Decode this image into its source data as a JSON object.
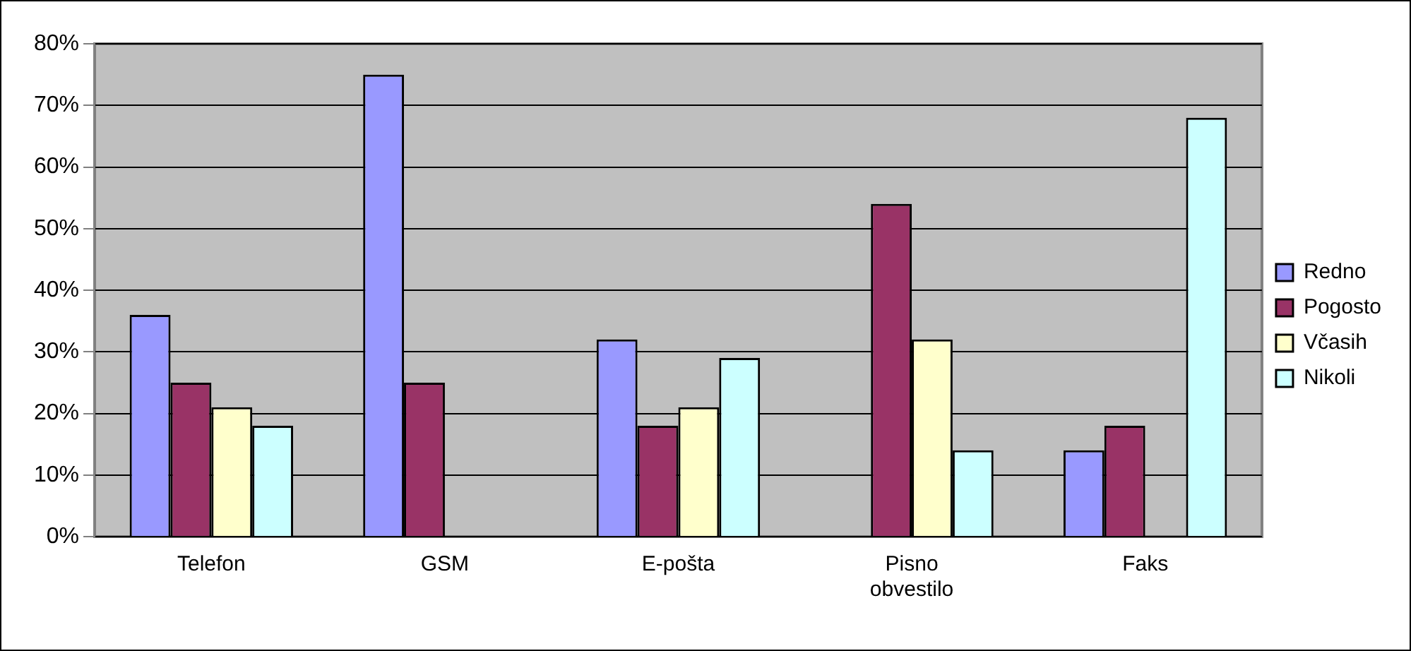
{
  "chart_data": {
    "type": "bar",
    "categories": [
      "Telefon",
      "GSM",
      "E-pošta",
      "Pisno obvestilo",
      "Faks"
    ],
    "series": [
      {
        "name": "Redno",
        "color": "#9999ff",
        "values": [
          36,
          75,
          32,
          0,
          14
        ]
      },
      {
        "name": "Pogosto",
        "color": "#993366",
        "values": [
          25,
          25,
          18,
          54,
          18
        ]
      },
      {
        "name": "Včasih",
        "color": "#ffffcc",
        "values": [
          21,
          0,
          21,
          32,
          0
        ]
      },
      {
        "name": "Nikoli",
        "color": "#ccffff",
        "values": [
          18,
          0,
          29,
          14,
          68
        ]
      }
    ],
    "ylim": [
      0,
      80
    ],
    "yticks": [
      {
        "value": 0,
        "label": "0%"
      },
      {
        "value": 10,
        "label": "10%"
      },
      {
        "value": 20,
        "label": "20%"
      },
      {
        "value": 30,
        "label": "30%"
      },
      {
        "value": 40,
        "label": "40%"
      },
      {
        "value": 50,
        "label": "50%"
      },
      {
        "value": 60,
        "label": "60%"
      },
      {
        "value": 70,
        "label": "70%"
      },
      {
        "value": 80,
        "label": "80%"
      }
    ],
    "grid": "y",
    "legend": "right"
  }
}
